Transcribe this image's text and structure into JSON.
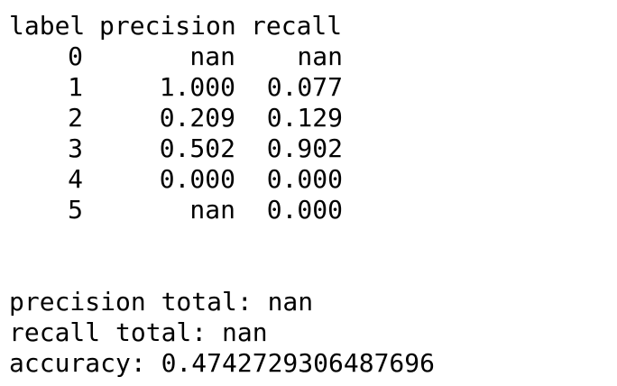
{
  "report": {
    "headers": {
      "label": "label",
      "precision": "precision",
      "recall": "recall"
    },
    "rows": [
      {
        "label": "0",
        "precision": "nan",
        "recall": "nan"
      },
      {
        "label": "1",
        "precision": "1.000",
        "recall": "0.077"
      },
      {
        "label": "2",
        "precision": "0.209",
        "recall": "0.129"
      },
      {
        "label": "3",
        "precision": "0.502",
        "recall": "0.902"
      },
      {
        "label": "4",
        "precision": "0.000",
        "recall": "0.000"
      },
      {
        "label": "5",
        "precision": "nan",
        "recall": "0.000"
      }
    ],
    "summary": {
      "precision_total": "precision total: nan",
      "recall_total": "recall total: nan",
      "accuracy": "accuracy: 0.4742729306487696"
    }
  }
}
